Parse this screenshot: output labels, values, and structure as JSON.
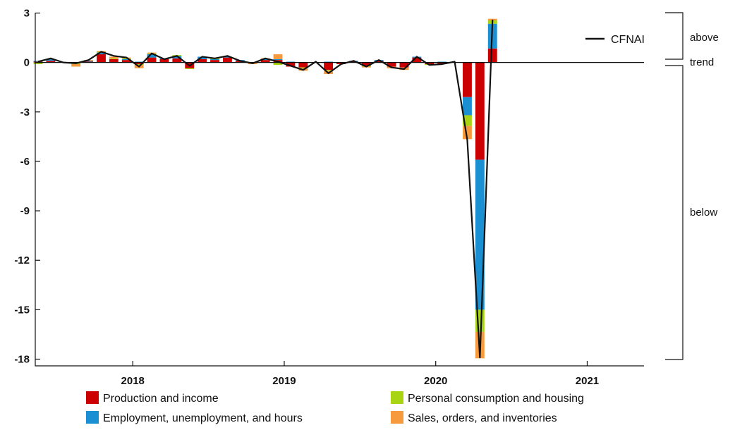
{
  "chart_data": {
    "type": "bar",
    "title": "",
    "xlabel": "",
    "ylabel": "",
    "ylim": [
      -18,
      3
    ],
    "yticks": [
      "3",
      "0",
      "-3",
      "-6",
      "-9",
      "-12",
      "-15",
      "-18"
    ],
    "ytick_values": [
      3,
      0,
      -3,
      -6,
      -9,
      -12,
      -15,
      -18
    ],
    "xticks": [
      "2018",
      "2019",
      "2020",
      "2021"
    ],
    "xtick_values": [
      "2018-01",
      "2019-01",
      "2020-01",
      "2021-01"
    ],
    "x_range": [
      "2017-05",
      "2021-05"
    ],
    "grid": false,
    "stacked": true,
    "months": [
      "2017-05",
      "2017-06",
      "2017-07",
      "2017-08",
      "2017-09",
      "2017-10",
      "2017-11",
      "2017-12",
      "2018-01",
      "2018-02",
      "2018-03",
      "2018-04",
      "2018-05",
      "2018-06",
      "2018-07",
      "2018-08",
      "2018-09",
      "2018-10",
      "2018-11",
      "2018-12",
      "2019-01",
      "2019-02",
      "2019-03",
      "2019-04",
      "2019-05",
      "2019-06",
      "2019-07",
      "2019-08",
      "2019-09",
      "2019-10",
      "2019-11",
      "2019-12",
      "2020-01",
      "2020-02",
      "2020-03",
      "2020-04",
      "2020-05"
    ],
    "series": [
      {
        "name": "Production and income",
        "color": "#cc0000",
        "values": [
          0.05,
          0.1,
          0.0,
          -0.05,
          0.05,
          0.5,
          0.2,
          0.15,
          -0.1,
          0.3,
          0.2,
          0.25,
          -0.35,
          0.2,
          0.15,
          0.3,
          0.1,
          0.0,
          0.15,
          0.15,
          -0.25,
          -0.3,
          0.0,
          -0.45,
          -0.1,
          0.05,
          -0.2,
          0.1,
          -0.25,
          -0.3,
          0.3,
          -0.1,
          -0.1,
          0.0,
          -2.1,
          -5.9,
          0.85
        ]
      },
      {
        "name": "Employment, unemployment, and hours",
        "color": "#1a8fd1",
        "values": [
          0.05,
          0.1,
          0.0,
          0.0,
          0.05,
          0.1,
          0.0,
          0.05,
          0.05,
          0.2,
          0.05,
          0.15,
          0.0,
          0.15,
          0.05,
          0.05,
          0.05,
          0.0,
          0.05,
          0.05,
          0.05,
          0.0,
          0.0,
          0.05,
          0.0,
          0.05,
          0.0,
          0.05,
          0.0,
          0.0,
          0.05,
          0.0,
          0.05,
          0.0,
          -1.1,
          -9.1,
          1.5
        ]
      },
      {
        "name": "Personal consumption and housing",
        "color": "#a8d414",
        "values": [
          -0.1,
          0.0,
          0.0,
          -0.05,
          0.0,
          0.05,
          0.05,
          0.05,
          -0.05,
          0.05,
          0.0,
          0.05,
          -0.05,
          0.0,
          0.05,
          0.0,
          0.0,
          0.0,
          0.0,
          -0.15,
          0.0,
          -0.05,
          0.0,
          -0.05,
          0.0,
          0.0,
          -0.05,
          0.0,
          0.0,
          0.0,
          0.0,
          -0.05,
          0.0,
          0.0,
          -0.65,
          -1.35,
          0.2
        ]
      },
      {
        "name": "Sales, orders, and inventories",
        "color": "#f79a3e",
        "values": [
          0.0,
          0.0,
          0.0,
          -0.15,
          0.05,
          0.05,
          0.1,
          0.05,
          -0.2,
          0.05,
          0.0,
          0.0,
          0.0,
          0.0,
          0.0,
          0.0,
          0.0,
          -0.1,
          0.05,
          0.3,
          0.0,
          -0.15,
          0.0,
          -0.2,
          0.0,
          0.0,
          -0.05,
          0.0,
          -0.1,
          -0.15,
          0.0,
          0.0,
          0.0,
          0.0,
          -0.8,
          -1.6,
          0.1
        ]
      }
    ],
    "line": {
      "name": "CFNAI",
      "color": "#111111",
      "values": [
        0.05,
        0.25,
        0.0,
        -0.05,
        0.15,
        0.65,
        0.4,
        0.3,
        -0.25,
        0.55,
        0.2,
        0.4,
        -0.2,
        0.35,
        0.25,
        0.4,
        0.1,
        -0.05,
        0.25,
        0.05,
        -0.2,
        -0.45,
        0.05,
        -0.65,
        -0.1,
        0.1,
        -0.25,
        0.15,
        -0.3,
        -0.4,
        0.35,
        -0.15,
        -0.1,
        0.05,
        -4.7,
        -17.9,
        2.6
      ]
    },
    "legend": [
      "Production and income",
      "Personal consumption and housing",
      "Employment, unemployment, and hours",
      "Sales, orders, and inventories"
    ],
    "line_legend": "CFNAI",
    "legend_position": "bottom",
    "side_labels": {
      "above": "above",
      "trend": "trend",
      "below": "below"
    }
  }
}
